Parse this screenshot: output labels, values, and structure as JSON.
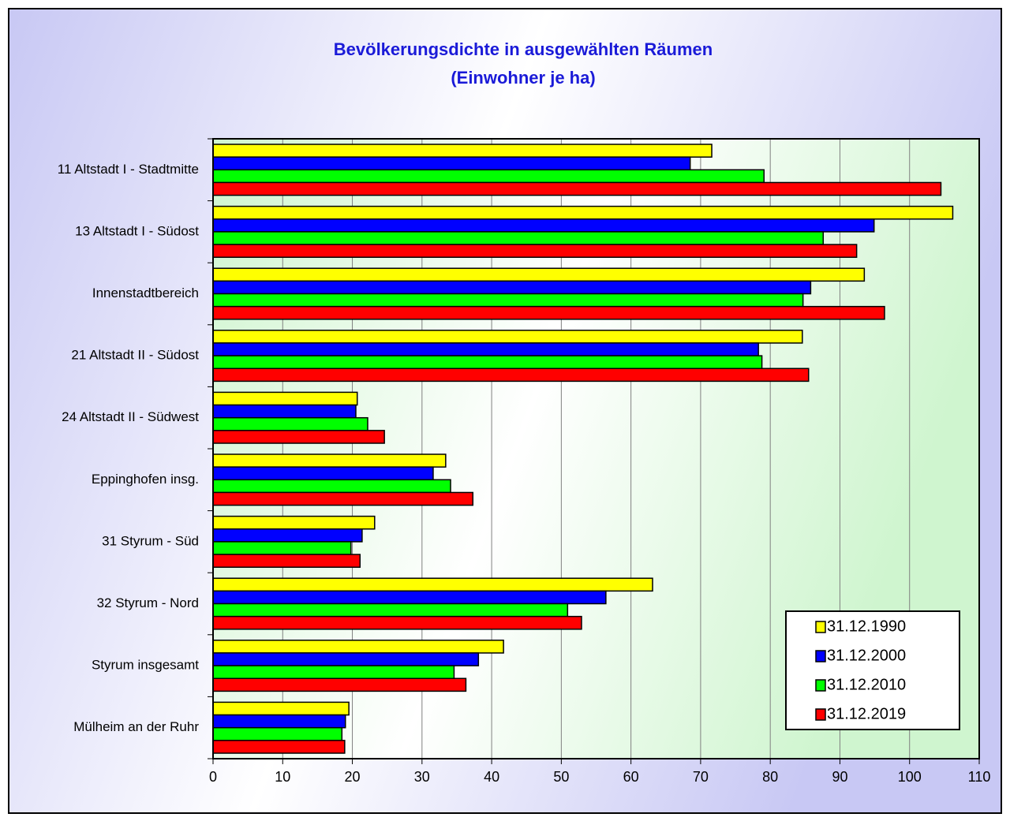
{
  "chart_data": {
    "type": "hbar",
    "title": "Bevölkerungsdichte in ausgewählten Räumen",
    "subtitle": "(Einwohner je ha)",
    "categories": [
      "11 Altstadt I - Stadtmitte",
      "13 Altstadt I - Südost",
      "Innenstadtbereich",
      "21 Altstadt II - Südost",
      "24 Altstadt II - Südwest",
      "Eppinghofen insg.",
      "31 Styrum - Süd",
      "32 Styrum - Nord",
      "Styrum insgesamt",
      "Mülheim an der Ruhr"
    ],
    "series": [
      {
        "name": "31.12.1990",
        "color": "#ffff00",
        "values": [
          71.6,
          106.2,
          93.5,
          84.6,
          20.7,
          33.4,
          23.2,
          63.1,
          41.7,
          19.5
        ]
      },
      {
        "name": "31.12.2000",
        "color": "#0000ff",
        "values": [
          68.5,
          94.9,
          85.8,
          78.3,
          20.5,
          31.6,
          21.4,
          56.4,
          38.1,
          19.0
        ]
      },
      {
        "name": "31.12.2010",
        "color": "#00ff00",
        "values": [
          79.1,
          87.6,
          84.7,
          78.8,
          22.2,
          34.1,
          19.8,
          50.9,
          34.6,
          18.5
        ]
      },
      {
        "name": "31.12.2019",
        "color": "#ff0000",
        "values": [
          104.5,
          92.4,
          96.4,
          85.5,
          24.6,
          37.3,
          21.1,
          52.9,
          36.3,
          18.9
        ]
      }
    ],
    "xlim": [
      0,
      110
    ],
    "xticks": [
      0,
      10,
      20,
      30,
      40,
      50,
      60,
      70,
      80,
      90,
      100,
      110
    ],
    "grid": true,
    "legend": "lower-right"
  }
}
